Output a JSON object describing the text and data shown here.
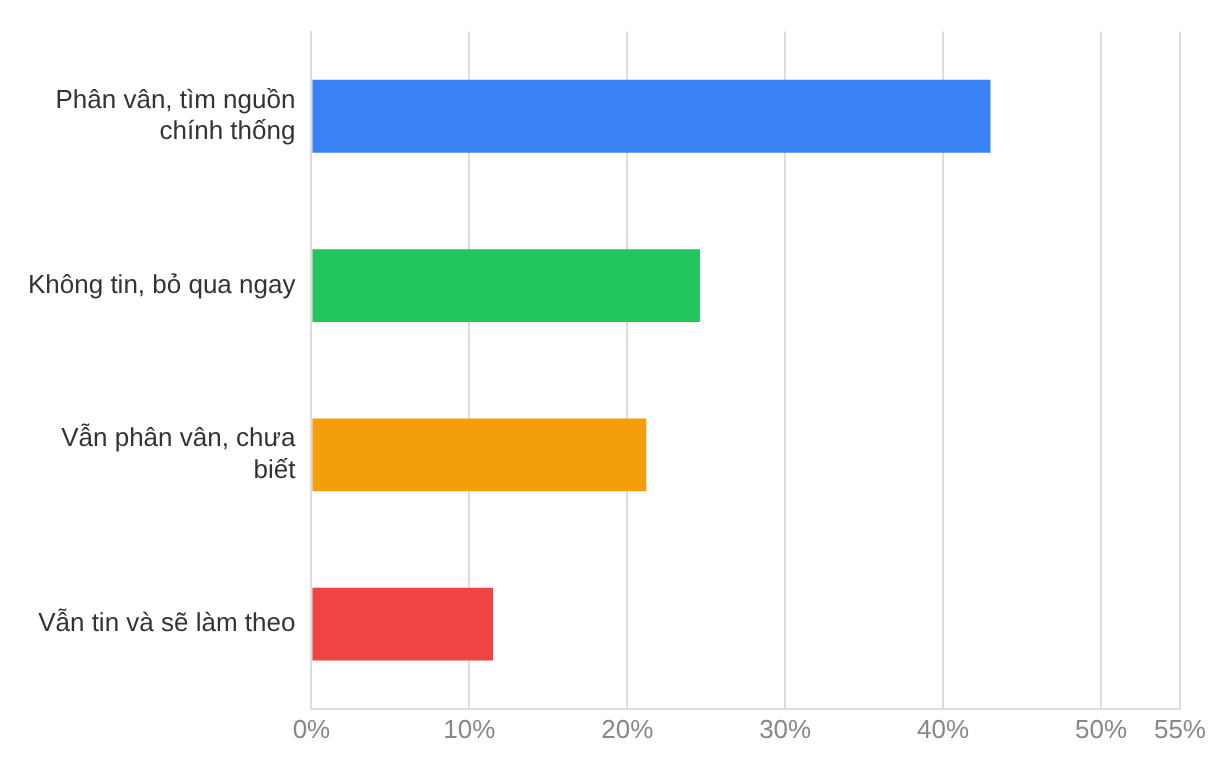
{
  "chart_data": {
    "type": "bar",
    "orientation": "horizontal",
    "categories": [
      "Phân vân, tìm nguồn chính thống",
      "Không tin, bỏ qua ngay",
      "Vẫn phân vân, chưa biết",
      "Vẫn tin và sẽ làm theo"
    ],
    "values": [
      43,
      24.6,
      21.2,
      11.5
    ],
    "colors": [
      "#3b82f6",
      "#22c55e",
      "#f59e0b",
      "#ef4444"
    ],
    "xlim": [
      0,
      55
    ],
    "xticks": [
      {
        "value": 0,
        "label": "0%"
      },
      {
        "value": 10,
        "label": "10%"
      },
      {
        "value": 20,
        "label": "20%"
      },
      {
        "value": 30,
        "label": "30%"
      },
      {
        "value": 40,
        "label": "40%"
      },
      {
        "value": 50,
        "label": "50%"
      },
      {
        "value": 55,
        "label": "55%"
      }
    ],
    "grid": "x",
    "legend": false
  }
}
